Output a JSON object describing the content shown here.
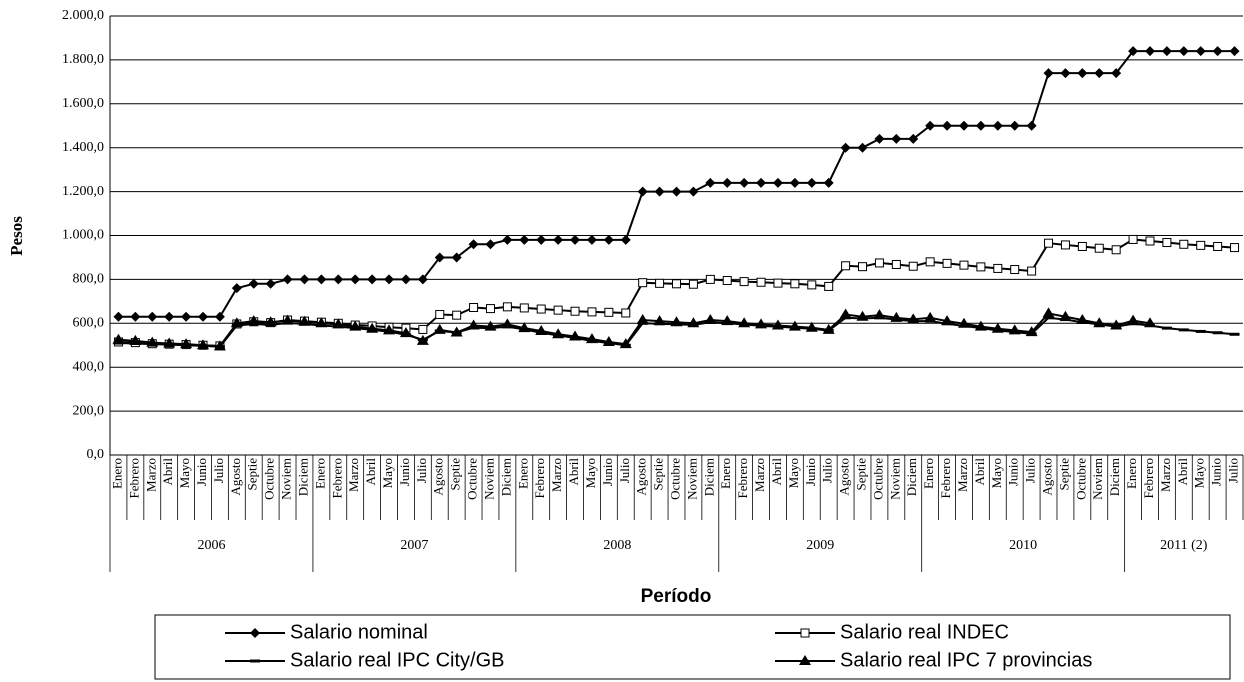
{
  "chart_data": {
    "type": "line",
    "x_label": "Período",
    "y_label": "Pesos",
    "categories": [
      "Enero",
      "Febrero",
      "Marzo",
      "Abril",
      "Mayo",
      "Junio",
      "Julio",
      "Agosto",
      "Septie",
      "Octubre",
      "Noviem",
      "Diciem",
      "Enero",
      "Febrero",
      "Marzo",
      "Abril",
      "Mayo",
      "Junio",
      "Julio",
      "Agosto",
      "Septie",
      "Octubre",
      "Noviem",
      "Diciem",
      "Enero",
      "Febrero",
      "Marzo",
      "Abril",
      "Mayo",
      "Junio",
      "Julio",
      "Agosto",
      "Septie",
      "Octubre",
      "Noviem",
      "Diciem",
      "Enero",
      "Febrero",
      "Marzo",
      "Abril",
      "Mayo",
      "Junio",
      "Julio",
      "Agosto",
      "Septie",
      "Octubre",
      "Noviem",
      "Diciem",
      "Enero",
      "Febrero",
      "Marzo",
      "Abril",
      "Mayo",
      "Junio",
      "Julio",
      "Agosto",
      "Septie",
      "Octubre",
      "Noviem",
      "Diciem",
      "Enero",
      "Febrero",
      "Marzo",
      "Abril",
      "Mayo",
      "Junio",
      "Julio"
    ],
    "x_groups": [
      {
        "label": "2006",
        "size": 12
      },
      {
        "label": "2007",
        "size": 12
      },
      {
        "label": "2008",
        "size": 12
      },
      {
        "label": "2009",
        "size": 12
      },
      {
        "label": "2010",
        "size": 12
      },
      {
        "label": "2011 (2)",
        "size": 7
      }
    ],
    "ylim": [
      0,
      2000
    ],
    "yticks": [
      {
        "value": 0,
        "label": "0,0"
      },
      {
        "value": 200,
        "label": "200,0"
      },
      {
        "value": 400,
        "label": "400,0"
      },
      {
        "value": 600,
        "label": "600,0"
      },
      {
        "value": 800,
        "label": "800,0"
      },
      {
        "value": 1000,
        "label": "1.000,0"
      },
      {
        "value": 1200,
        "label": "1.200,0"
      },
      {
        "value": 1400,
        "label": "1.400,0"
      },
      {
        "value": 1600,
        "label": "1.600,0"
      },
      {
        "value": 1800,
        "label": "1.800,0"
      },
      {
        "value": 2000,
        "label": "2.000,0"
      }
    ],
    "grid": true,
    "legend_position": "bottom",
    "series": [
      {
        "name": "Salario nominal",
        "color": "#000000",
        "marker": "diamond",
        "values": [
          630,
          630,
          630,
          630,
          630,
          630,
          630,
          760,
          780,
          780,
          800,
          800,
          800,
          800,
          800,
          800,
          800,
          800,
          800,
          900,
          900,
          960,
          960,
          980,
          980,
          980,
          980,
          980,
          980,
          980,
          980,
          1200,
          1200,
          1200,
          1200,
          1240,
          1240,
          1240,
          1240,
          1240,
          1240,
          1240,
          1240,
          1400,
          1400,
          1440,
          1440,
          1440,
          1500,
          1500,
          1500,
          1500,
          1500,
          1500,
          1500,
          1740,
          1740,
          1740,
          1740,
          1740,
          1840,
          1840,
          1840,
          1840,
          1840,
          1840,
          1840
        ]
      },
      {
        "name": "Salario real INDEC",
        "color": "#000000",
        "marker": "square-open",
        "values": [
          515,
          512,
          507,
          505,
          503,
          500,
          497,
          597,
          607,
          603,
          615,
          610,
          605,
          600,
          592,
          588,
          582,
          578,
          572,
          640,
          637,
          672,
          667,
          675,
          670,
          665,
          660,
          655,
          652,
          650,
          647,
          785,
          782,
          780,
          778,
          800,
          795,
          790,
          787,
          783,
          780,
          775,
          768,
          862,
          858,
          875,
          868,
          860,
          880,
          873,
          865,
          857,
          850,
          845,
          838,
          965,
          957,
          950,
          942,
          935,
          982,
          975,
          968,
          960,
          955,
          950,
          945
        ]
      },
      {
        "name": "Salario real IPC City/GB",
        "color": "#000000",
        "marker": "dash",
        "values": [
          510,
          508,
          505,
          503,
          500,
          497,
          493,
          590,
          597,
          593,
          602,
          597,
          590,
          585,
          578,
          570,
          562,
          548,
          525,
          565,
          558,
          580,
          578,
          585,
          572,
          557,
          545,
          533,
          520,
          510,
          500,
          600,
          598,
          595,
          593,
          605,
          600,
          595,
          588,
          585,
          580,
          575,
          567,
          625,
          622,
          625,
          617,
          610,
          610,
          598,
          588,
          578,
          568,
          560,
          552,
          625,
          617,
          605,
          595,
          585,
          598,
          590,
          578,
          570,
          563,
          557,
          550
        ]
      },
      {
        "name": "Salario real IPC 7 provincias",
        "color": "#000000",
        "marker": "triangle",
        "values": [
          525,
          520,
          512,
          508,
          505,
          500,
          495,
          600,
          610,
          605,
          612,
          607,
          600,
          595,
          585,
          575,
          568,
          555,
          520,
          570,
          558,
          590,
          585,
          595,
          578,
          565,
          550,
          540,
          528,
          515,
          505,
          615,
          610,
          605,
          600,
          615,
          610,
          600,
          595,
          590,
          585,
          580,
          570,
          640,
          630,
          637,
          625,
          618,
          625,
          610,
          598,
          585,
          575,
          568,
          560,
          645,
          630,
          615,
          600,
          590,
          612,
          600,
          null,
          null,
          null,
          null,
          null
        ]
      }
    ]
  }
}
